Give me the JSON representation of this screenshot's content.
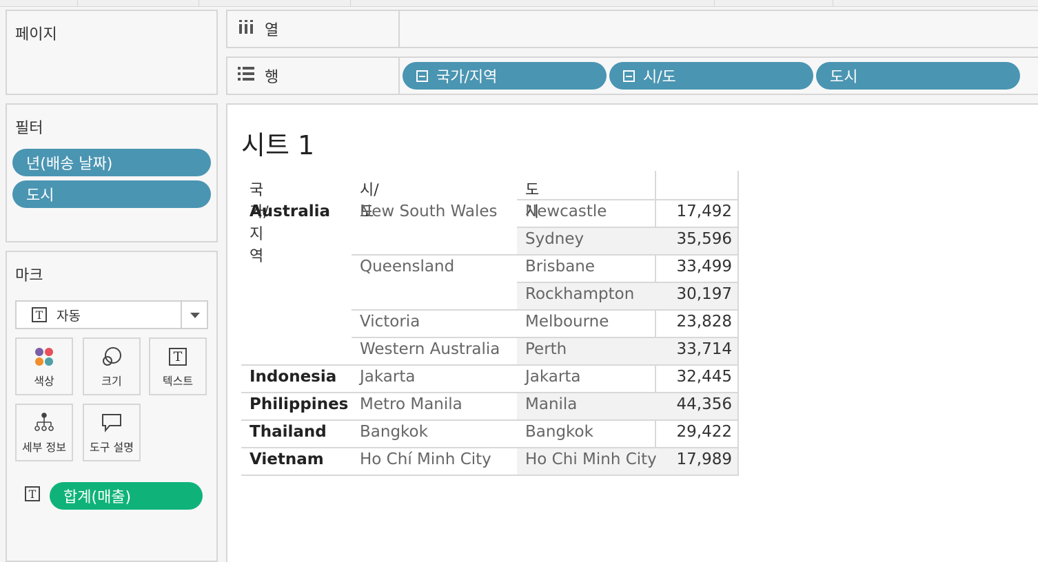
{
  "shelves": {
    "pages_title": "페이지",
    "columns_label": "열",
    "rows_label": "행",
    "row_pills": [
      "국가/지역",
      "시/도",
      "도시"
    ]
  },
  "filters": {
    "title": "필터",
    "items": [
      "년(배송 날짜)",
      "도시"
    ]
  },
  "marks": {
    "title": "마크",
    "mark_type": "자동",
    "buttons": [
      "색상",
      "크기",
      "텍스트",
      "세부 정보",
      "도구 설명"
    ],
    "text_pill": "합계(매출)"
  },
  "sheet": {
    "title": "시트 1",
    "headers": [
      "국가/지역",
      "시/도",
      "도시"
    ],
    "rows": [
      {
        "country": "Australia",
        "state": "New South Wales",
        "city": "Newcastle",
        "value": "17,492"
      },
      {
        "country": "",
        "state": "",
        "city": "Sydney",
        "value": "35,596"
      },
      {
        "country": "",
        "state": "Queensland",
        "city": "Brisbane",
        "value": "33,499"
      },
      {
        "country": "",
        "state": "",
        "city": "Rockhampton",
        "value": "30,197"
      },
      {
        "country": "",
        "state": "Victoria",
        "city": "Melbourne",
        "value": "23,828"
      },
      {
        "country": "",
        "state": "Western Australia",
        "city": "Perth",
        "value": "33,714"
      },
      {
        "country": "Indonesia",
        "state": "Jakarta",
        "city": "Jakarta",
        "value": "32,445"
      },
      {
        "country": "Philippines",
        "state": "Metro Manila",
        "city": "Manila",
        "value": "44,356"
      },
      {
        "country": "Thailand",
        "state": "Bangkok",
        "city": "Bangkok",
        "value": "29,422"
      },
      {
        "country": "Vietnam",
        "state": "Ho Chí Minh City",
        "city": "Ho Chi Minh City",
        "value": "17,989"
      }
    ]
  },
  "colors": {
    "dimension_pill": "#4a95b2",
    "measure_pill": "#0fb37a"
  }
}
